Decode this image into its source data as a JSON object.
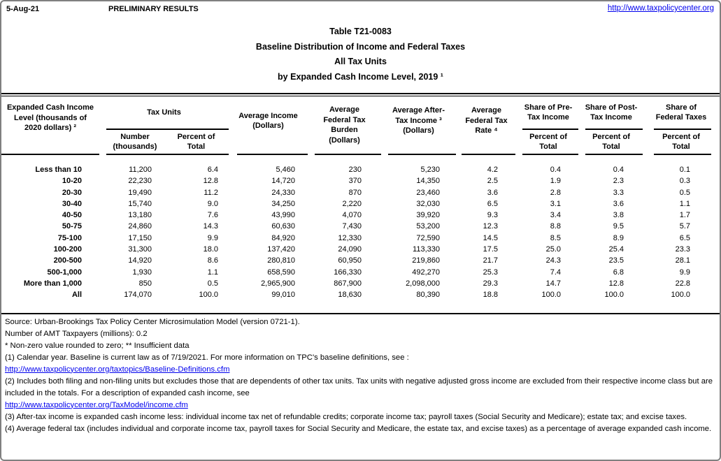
{
  "page": {
    "date": "5-Aug-21",
    "status": "PRELIMINARY RESULTS",
    "site_url": "http://www.taxpolicycenter.org"
  },
  "title": {
    "line1": "Table T21-0083",
    "line2": "Baseline Distribution of Income and Federal Taxes",
    "line3": "All Tax Units",
    "line4": "by Expanded Cash Income Level, 2019 ¹"
  },
  "table": {
    "headers": {
      "income_level": [
        "Expanded Cash Income",
        "Level (thousands of",
        "2020 dollars) ²"
      ],
      "tax_units_group": "Tax Units",
      "tax_units_number": [
        "Number",
        "(thousands)"
      ],
      "tax_units_percent": [
        "Percent of",
        "Total"
      ],
      "avg_income": [
        "Average Income",
        "(Dollars)"
      ],
      "avg_fed_tax_burden": [
        "Average",
        "Federal Tax",
        "Burden",
        "(Dollars)"
      ],
      "avg_after_tax_income": [
        "Average After-",
        "Tax Income ³",
        "(Dollars)"
      ],
      "avg_fed_tax_rate": [
        "Average",
        "Federal Tax",
        "Rate ⁴"
      ],
      "share_pre_tax": [
        "Share of Pre-",
        "Tax Income"
      ],
      "share_post_tax": [
        "Share of Post-",
        "Tax Income"
      ],
      "share_fed_taxes": [
        "Share of",
        "Federal Taxes"
      ],
      "percent_of_total": [
        "Percent of",
        "Total"
      ]
    },
    "rows": [
      [
        "Less than 10",
        "11,200",
        "6.4",
        "5,460",
        "230",
        "5,230",
        "4.2",
        "0.4",
        "0.4",
        "0.1"
      ],
      [
        "10-20",
        "22,230",
        "12.8",
        "14,720",
        "370",
        "14,350",
        "2.5",
        "1.9",
        "2.3",
        "0.3"
      ],
      [
        "20-30",
        "19,490",
        "11.2",
        "24,330",
        "870",
        "23,460",
        "3.6",
        "2.8",
        "3.3",
        "0.5"
      ],
      [
        "30-40",
        "15,740",
        "9.0",
        "34,250",
        "2,220",
        "32,030",
        "6.5",
        "3.1",
        "3.6",
        "1.1"
      ],
      [
        "40-50",
        "13,180",
        "7.6",
        "43,990",
        "4,070",
        "39,920",
        "9.3",
        "3.4",
        "3.8",
        "1.7"
      ],
      [
        "50-75",
        "24,860",
        "14.3",
        "60,630",
        "7,430",
        "53,200",
        "12.3",
        "8.8",
        "9.5",
        "5.7"
      ],
      [
        "75-100",
        "17,150",
        "9.9",
        "84,920",
        "12,330",
        "72,590",
        "14.5",
        "8.5",
        "8.9",
        "6.5"
      ],
      [
        "100-200",
        "31,300",
        "18.0",
        "137,420",
        "24,090",
        "113,330",
        "17.5",
        "25.0",
        "25.4",
        "23.3"
      ],
      [
        "200-500",
        "14,920",
        "8.6",
        "280,810",
        "60,950",
        "219,860",
        "21.7",
        "24.3",
        "23.5",
        "28.1"
      ],
      [
        "500-1,000",
        "1,930",
        "1.1",
        "658,590",
        "166,330",
        "492,270",
        "25.3",
        "7.4",
        "6.8",
        "9.9"
      ],
      [
        "More than 1,000",
        "850",
        "0.5",
        "2,965,900",
        "867,900",
        "2,098,000",
        "29.3",
        "14.7",
        "12.8",
        "22.8"
      ],
      [
        "All",
        "174,070",
        "100.0",
        "99,010",
        "18,630",
        "80,390",
        "18.8",
        "100.0",
        "100.0",
        "100.0"
      ]
    ]
  },
  "footnotes": {
    "source": "Source: Urban-Brookings Tax Policy Center Microsimulation Model (version 0721-1).",
    "amt": "Number of AMT Taxpayers (millions): 0.2",
    "symbols": "* Non-zero value rounded to zero; ** Insufficient data",
    "note1": "(1) Calendar year. Baseline is current law as of 7/19/2021. For more information on TPC's baseline definitions, see :",
    "link1": "http://www.taxpolicycenter.org/taxtopics/Baseline-Definitions.cfm",
    "note2": "(2) Includes both filing and non-filing units but excludes those that are dependents of other tax units. Tax units with negative adjusted gross income are excluded from their respective income class but are included in the totals. For a description of expanded cash income, see",
    "link2": "http://www.taxpolicycenter.org/TaxModel/income.cfm",
    "note3": "(3) After-tax income is expanded cash income less: individual income tax net of refundable credits; corporate income tax; payroll taxes (Social Security and Medicare); estate tax; and excise taxes.",
    "note4": "(4) Average federal tax (includes individual and corporate income tax, payroll taxes for Social Security and Medicare, the estate tax, and excise taxes) as a percentage of average expanded cash income."
  }
}
